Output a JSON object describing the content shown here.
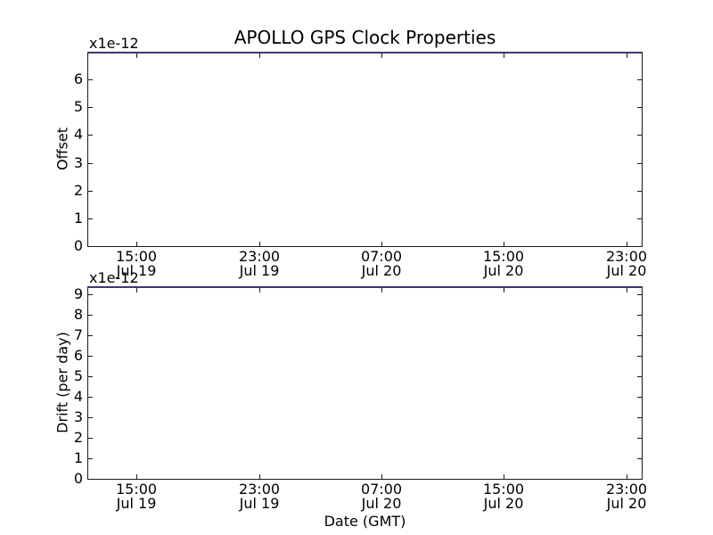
{
  "figure": {
    "background": "#ffffff",
    "spine_color": "#1a1a1a",
    "tick_color": "#1a1a1a",
    "text_color": "#000000",
    "top_edge_line_color": "#3a3a6e"
  },
  "chart_data": [
    {
      "type": "line",
      "title": "APOLLO GPS Clock Properties",
      "ylabel": "Offset",
      "y_scale_label": "x1e-12",
      "yticks": [
        0,
        1,
        2,
        3,
        4,
        5,
        6
      ],
      "ylim": [
        0,
        7.0
      ],
      "xticks": [
        {
          "time": "15:00",
          "date": "Jul 19",
          "f": 0.0884
        },
        {
          "time": "23:00",
          "date": "Jul 19",
          "f": 0.3095
        },
        {
          "time": "07:00",
          "date": "Jul 20",
          "f": 0.5305
        },
        {
          "time": "15:00",
          "date": "Jul 20",
          "f": 0.7516
        },
        {
          "time": "23:00",
          "date": "Jul 20",
          "f": 0.9727
        }
      ],
      "grid": false,
      "legend": null,
      "series": [],
      "top_edge_line_color": "#3a3a6e"
    },
    {
      "type": "line",
      "title": "",
      "ylabel": "Drift (per day)",
      "y_scale_label": "x1e-12",
      "xlabel": "Date (GMT)",
      "yticks": [
        0,
        1,
        2,
        3,
        4,
        5,
        6,
        7,
        8,
        9
      ],
      "ylim": [
        0,
        9.4
      ],
      "xticks": [
        {
          "time": "15:00",
          "date": "Jul 19",
          "f": 0.0884
        },
        {
          "time": "23:00",
          "date": "Jul 19",
          "f": 0.3095
        },
        {
          "time": "07:00",
          "date": "Jul 20",
          "f": 0.5305
        },
        {
          "time": "15:00",
          "date": "Jul 20",
          "f": 0.7516
        },
        {
          "time": "23:00",
          "date": "Jul 20",
          "f": 0.9727
        }
      ],
      "grid": false,
      "legend": null,
      "series": [],
      "top_edge_line_color": "#3a3a6e"
    }
  ]
}
